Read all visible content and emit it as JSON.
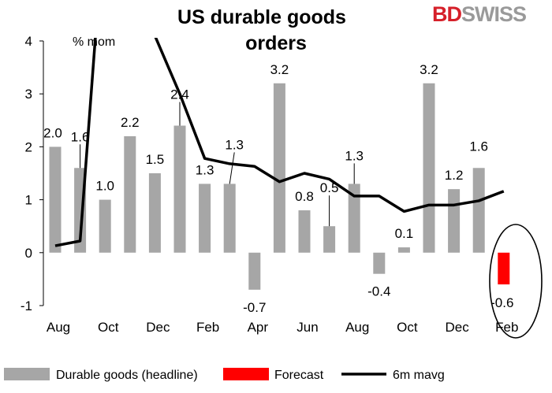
{
  "chart_data": {
    "type": "bar",
    "title": [
      "US durable goods",
      "orders"
    ],
    "unit_label": "% mom",
    "ylim": [
      -1,
      4
    ],
    "yticks": [
      "-1",
      "0",
      "1",
      "2",
      "3",
      "4"
    ],
    "x_tick_labels": [
      "Aug",
      "Oct",
      "Dec",
      "Feb",
      "Apr",
      "Jun",
      "Aug",
      "Oct",
      "Dec",
      "Feb"
    ],
    "series": [
      {
        "name": "Durable goods (headline)",
        "type": "bar",
        "color": "#a6a6a6",
        "values": [
          2.0,
          1.6,
          1.0,
          2.2,
          1.5,
          2.4,
          1.3,
          1.3,
          -0.7,
          3.2,
          0.8,
          0.5,
          1.3,
          -0.4,
          0.1,
          3.2,
          1.2,
          1.6
        ],
        "labels": [
          "2.0",
          "1.6",
          "1.0",
          "2.2",
          "1.5",
          "2.4",
          "1.3",
          "1.3",
          "-0.7",
          "3.2",
          "0.8",
          "0.5",
          "1.3",
          "-0.4",
          "0.1",
          "3.2",
          "1.2",
          "1.6"
        ]
      },
      {
        "name": "Forecast",
        "type": "bar",
        "color": "#ff0000",
        "values": [
          null,
          null,
          null,
          null,
          null,
          null,
          null,
          null,
          null,
          null,
          null,
          null,
          null,
          null,
          null,
          null,
          null,
          null,
          -0.6
        ],
        "labels": [
          "-0.6"
        ]
      },
      {
        "name": "6m mavg",
        "type": "line",
        "color": "#000000",
        "values": [
          0.13,
          0.22,
          6.5,
          6.5,
          4.1,
          3.0,
          1.78,
          1.68,
          1.63,
          1.34,
          1.5,
          1.39,
          1.07,
          1.07,
          0.78,
          0.9,
          0.9,
          0.98,
          1.16
        ]
      }
    ],
    "legend_position": "bottom",
    "grid": false
  },
  "brand": {
    "part1": "BD",
    "part2": "SWISS"
  }
}
